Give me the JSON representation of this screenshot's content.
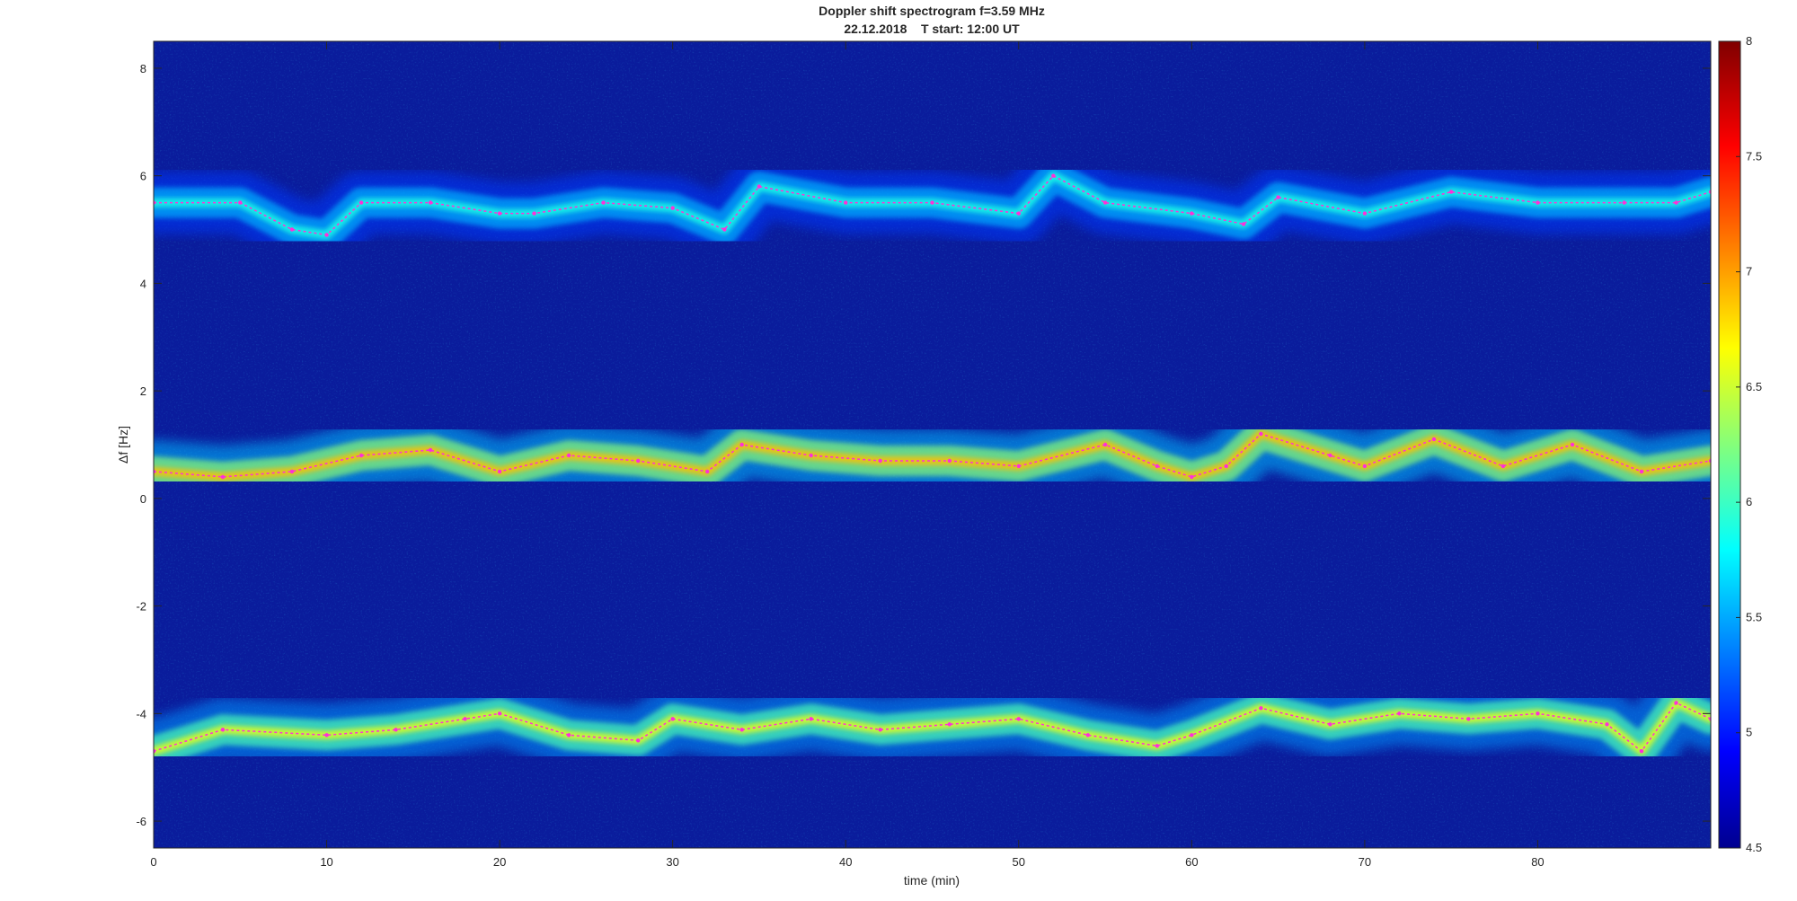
{
  "chart_data": {
    "type": "heatmap",
    "title": "Doppler shift spectrogram f=3.59 MHz",
    "subtitle": "22.12.2018    T start: 12:00 UT",
    "xlabel": "time (min)",
    "ylabel": "Δf [Hz]",
    "xlim": [
      0,
      90
    ],
    "ylim": [
      -6.5,
      8.5
    ],
    "xticks": [
      "0",
      "10",
      "20",
      "30",
      "40",
      "50",
      "60",
      "70",
      "80"
    ],
    "yticks": [
      "-6",
      "-4",
      "-2",
      "0",
      "2",
      "4",
      "6",
      "8"
    ],
    "colorbar": {
      "colormap": "jet",
      "range": [
        4.5,
        8
      ],
      "ticks": [
        "4.5",
        "5",
        "5.5",
        "6",
        "6.5",
        "7",
        "7.5",
        "8"
      ]
    },
    "background_color": "#0a1c9c",
    "grid": false,
    "bands": [
      {
        "name": "",
        "x": [
          0,
          5,
          8,
          10,
          12,
          16,
          20,
          22,
          26,
          30,
          33,
          35,
          40,
          45,
          50,
          52,
          55,
          60,
          63,
          65,
          70,
          75,
          80,
          85,
          88,
          90
        ],
        "y": [
          5.5,
          5.5,
          5.0,
          4.9,
          5.5,
          5.5,
          5.3,
          5.3,
          5.5,
          5.4,
          5.0,
          5.8,
          5.5,
          5.5,
          5.3,
          6.0,
          5.5,
          5.3,
          5.1,
          5.6,
          5.3,
          5.7,
          5.5,
          5.5,
          5.5,
          5.7
        ],
        "intensity": 5.9
      },
      {
        "name": "",
        "x": [
          0,
          4,
          8,
          12,
          16,
          20,
          24,
          28,
          32,
          34,
          38,
          42,
          46,
          50,
          55,
          58,
          60,
          62,
          64,
          68,
          70,
          74,
          78,
          82,
          86,
          90
        ],
        "y": [
          0.5,
          0.4,
          0.5,
          0.8,
          0.9,
          0.5,
          0.8,
          0.7,
          0.5,
          1.0,
          0.8,
          0.7,
          0.7,
          0.6,
          1.0,
          0.6,
          0.4,
          0.6,
          1.2,
          0.8,
          0.6,
          1.1,
          0.6,
          1.0,
          0.5,
          0.7
        ],
        "intensity": 6.9
      },
      {
        "name": "",
        "x": [
          0,
          4,
          10,
          14,
          18,
          20,
          24,
          28,
          30,
          34,
          38,
          42,
          46,
          50,
          54,
          58,
          60,
          64,
          68,
          72,
          76,
          80,
          84,
          86,
          88,
          90
        ],
        "y": [
          -4.7,
          -4.3,
          -4.4,
          -4.3,
          -4.1,
          -4.0,
          -4.4,
          -4.5,
          -4.1,
          -4.3,
          -4.1,
          -4.3,
          -4.2,
          -4.1,
          -4.4,
          -4.6,
          -4.4,
          -3.9,
          -4.2,
          -4.0,
          -4.1,
          -4.0,
          -4.2,
          -4.7,
          -3.8,
          -4.1
        ],
        "intensity": 6.6
      }
    ]
  }
}
